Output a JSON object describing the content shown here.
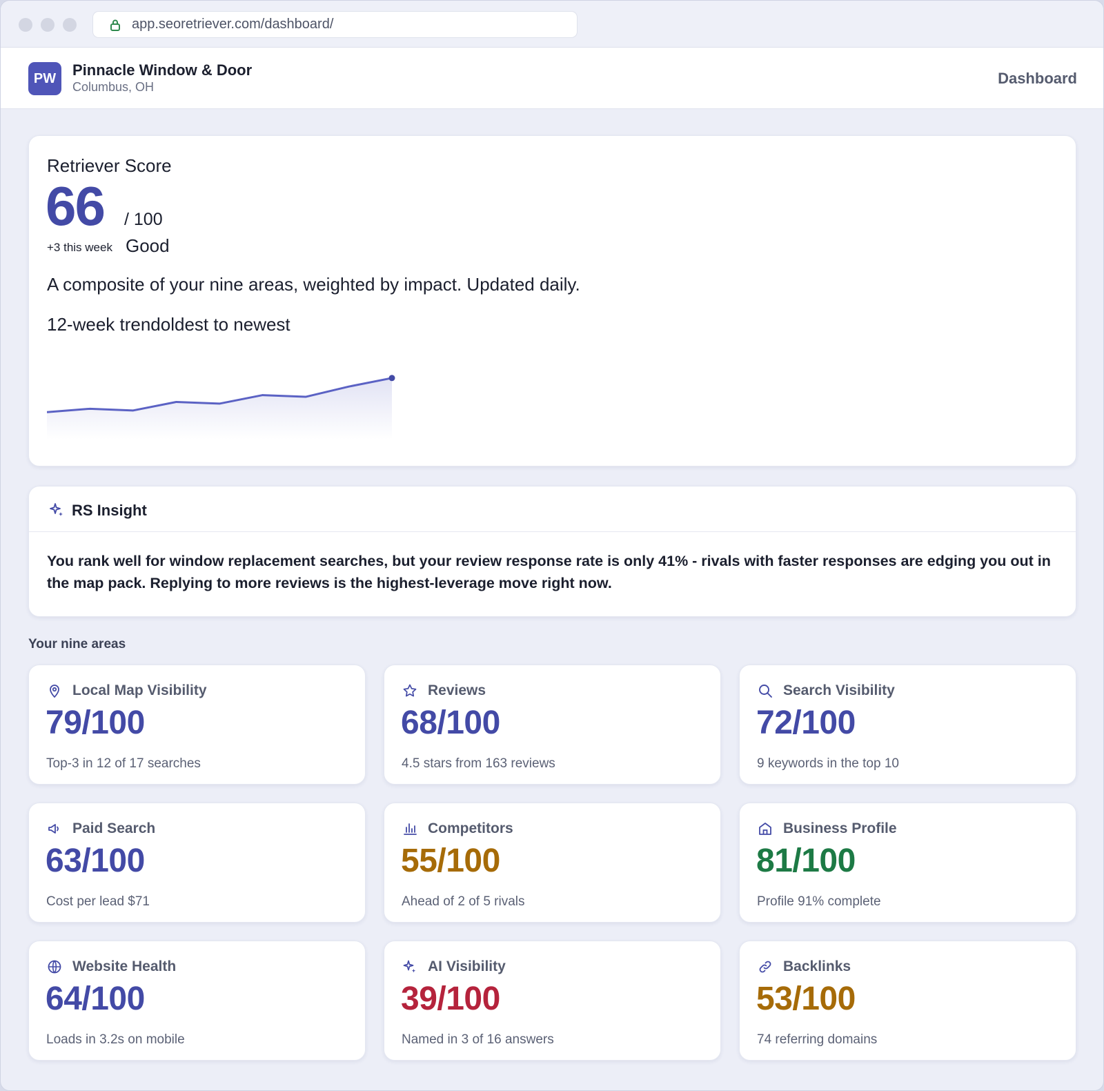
{
  "browser": {
    "url": "app.seoretriever.com/dashboard/"
  },
  "header": {
    "avatar_initials": "PW",
    "business_name": "Pinnacle Window & Door",
    "location": "Columbus, OH",
    "nav_label": "Dashboard"
  },
  "score": {
    "label": "Retriever Score",
    "value": "66",
    "out_of": "/ 100",
    "delta": "+3 this week",
    "grade": "Good",
    "description": "A composite of your nine areas, weighted by impact. Updated daily.",
    "trend_label": "12-week trendoldest to newest"
  },
  "chart_data": {
    "type": "line",
    "x": [
      1,
      2,
      3,
      4,
      5,
      6,
      7,
      8,
      9
    ],
    "series": [
      {
        "values": [
          56,
          57,
          56.5,
          59,
          58.5,
          61,
          60.5,
          63.5,
          66
        ]
      }
    ],
    "ylim": [
      50,
      70
    ],
    "grid": false,
    "color": "#5b62c4"
  },
  "insight": {
    "title": "RS Insight",
    "icon": "sparkle-icon",
    "text": "You rank well for window replacement searches, but your review response rate is only 41% - rivals with faster responses are edging you out in the map pack. Replying to more reviews is the highest-leverage move right now."
  },
  "areas_label": "Your nine areas",
  "areas": [
    {
      "name": "Local Map Visibility",
      "icon": "map-pin-icon",
      "value": "79/100",
      "sub": "Top-3 in 12 of 17 searches",
      "color": "#434aa6"
    },
    {
      "name": "Reviews",
      "icon": "star-icon",
      "value": "68/100",
      "sub": "4.5 stars from 163 reviews",
      "color": "#434aa6"
    },
    {
      "name": "Search Visibility",
      "icon": "search-icon",
      "value": "72/100",
      "sub": "9 keywords in the top 10",
      "color": "#434aa6"
    },
    {
      "name": "Paid Search",
      "icon": "megaphone-icon",
      "value": "63/100",
      "sub": "Cost per lead $71",
      "color": "#434aa6"
    },
    {
      "name": "Competitors",
      "icon": "bar-chart-icon",
      "value": "55/100",
      "sub": "Ahead of 2 of 5 rivals",
      "color": "#a66b08"
    },
    {
      "name": "Business Profile",
      "icon": "storefront-icon",
      "value": "81/100",
      "sub": "Profile 91% complete",
      "color": "#1d7a45"
    },
    {
      "name": "Website Health",
      "icon": "globe-icon",
      "value": "64/100",
      "sub": "Loads in 3.2s on mobile",
      "color": "#434aa6"
    },
    {
      "name": "AI Visibility",
      "icon": "sparkle-icon",
      "value": "39/100",
      "sub": "Named in 3 of 16 answers",
      "color": "#b5233c"
    },
    {
      "name": "Backlinks",
      "icon": "link-icon",
      "value": "53/100",
      "sub": "74 referring domains",
      "color": "#a66b08"
    }
  ]
}
